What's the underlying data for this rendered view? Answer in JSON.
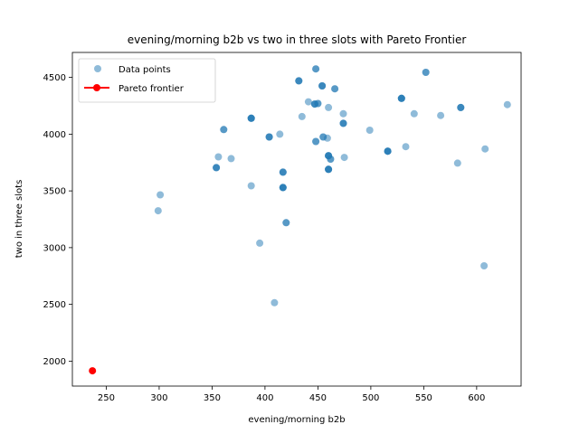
{
  "chart_data": {
    "type": "scatter",
    "title": "evening/morning b2b vs two in three slots with Pareto Frontier",
    "xlabel": "evening/morning b2b",
    "ylabel": "two in three slots",
    "xlim": [
      218,
      642
    ],
    "ylim": [
      1780,
      4720
    ],
    "xticks": [
      250,
      300,
      350,
      400,
      450,
      500,
      550,
      600
    ],
    "yticks": [
      2000,
      2500,
      3000,
      3500,
      4000,
      4500
    ],
    "legend": "top-left",
    "grid": false,
    "series": [
      {
        "name": "Data points",
        "color": "#1f77b4",
        "opacity": 0.5,
        "points": [
          [
            432,
            4470
          ],
          [
            432,
            4470
          ],
          [
            432,
            4470
          ],
          [
            448,
            4575
          ],
          [
            448,
            4575
          ],
          [
            454,
            4425
          ],
          [
            454,
            4425
          ],
          [
            454,
            4425
          ],
          [
            466,
            4400
          ],
          [
            466,
            4400
          ],
          [
            552,
            4545
          ],
          [
            552,
            4545
          ],
          [
            529,
            4315
          ],
          [
            529,
            4315
          ],
          [
            529,
            4315
          ],
          [
            529,
            4315
          ],
          [
            585,
            4235
          ],
          [
            585,
            4235
          ],
          [
            585,
            4235
          ],
          [
            629,
            4260
          ],
          [
            441,
            4285
          ],
          [
            447,
            4265
          ],
          [
            447,
            4265
          ],
          [
            447,
            4265
          ],
          [
            450,
            4270
          ],
          [
            450,
            4270
          ],
          [
            460,
            4235
          ],
          [
            435,
            4155
          ],
          [
            474,
            4180
          ],
          [
            474,
            4095
          ],
          [
            474,
            4095
          ],
          [
            474,
            4095
          ],
          [
            541,
            4180
          ],
          [
            566,
            4165
          ],
          [
            387,
            4140
          ],
          [
            387,
            4140
          ],
          [
            387,
            4140
          ],
          [
            387,
            4140
          ],
          [
            361,
            4040
          ],
          [
            361,
            4040
          ],
          [
            499,
            4035
          ],
          [
            414,
            4000
          ],
          [
            404,
            3975
          ],
          [
            404,
            3975
          ],
          [
            404,
            3975
          ],
          [
            455,
            3975
          ],
          [
            455,
            3975
          ],
          [
            459,
            3965
          ],
          [
            448,
            3935
          ],
          [
            448,
            3935
          ],
          [
            533,
            3890
          ],
          [
            608,
            3870
          ],
          [
            516,
            3850
          ],
          [
            516,
            3850
          ],
          [
            516,
            3850
          ],
          [
            516,
            3850
          ],
          [
            460,
            3810
          ],
          [
            460,
            3810
          ],
          [
            460,
            3810
          ],
          [
            460,
            3810
          ],
          [
            462,
            3780
          ],
          [
            462,
            3780
          ],
          [
            475,
            3795
          ],
          [
            356,
            3800
          ],
          [
            368,
            3785
          ],
          [
            582,
            3745
          ],
          [
            354,
            3705
          ],
          [
            354,
            3705
          ],
          [
            354,
            3705
          ],
          [
            460,
            3690
          ],
          [
            460,
            3690
          ],
          [
            460,
            3690
          ],
          [
            460,
            3690
          ],
          [
            417,
            3665
          ],
          [
            417,
            3665
          ],
          [
            417,
            3665
          ],
          [
            387,
            3545
          ],
          [
            417,
            3530
          ],
          [
            417,
            3530
          ],
          [
            417,
            3530
          ],
          [
            417,
            3530
          ],
          [
            301,
            3465
          ],
          [
            299,
            3325
          ],
          [
            420,
            3220
          ],
          [
            420,
            3220
          ],
          [
            395,
            3040
          ],
          [
            607,
            2840
          ],
          [
            409,
            2515
          ]
        ]
      },
      {
        "name": "Pareto frontier",
        "color": "#ff0000",
        "opacity": 1,
        "points": [
          [
            237,
            1915
          ]
        ]
      }
    ]
  }
}
